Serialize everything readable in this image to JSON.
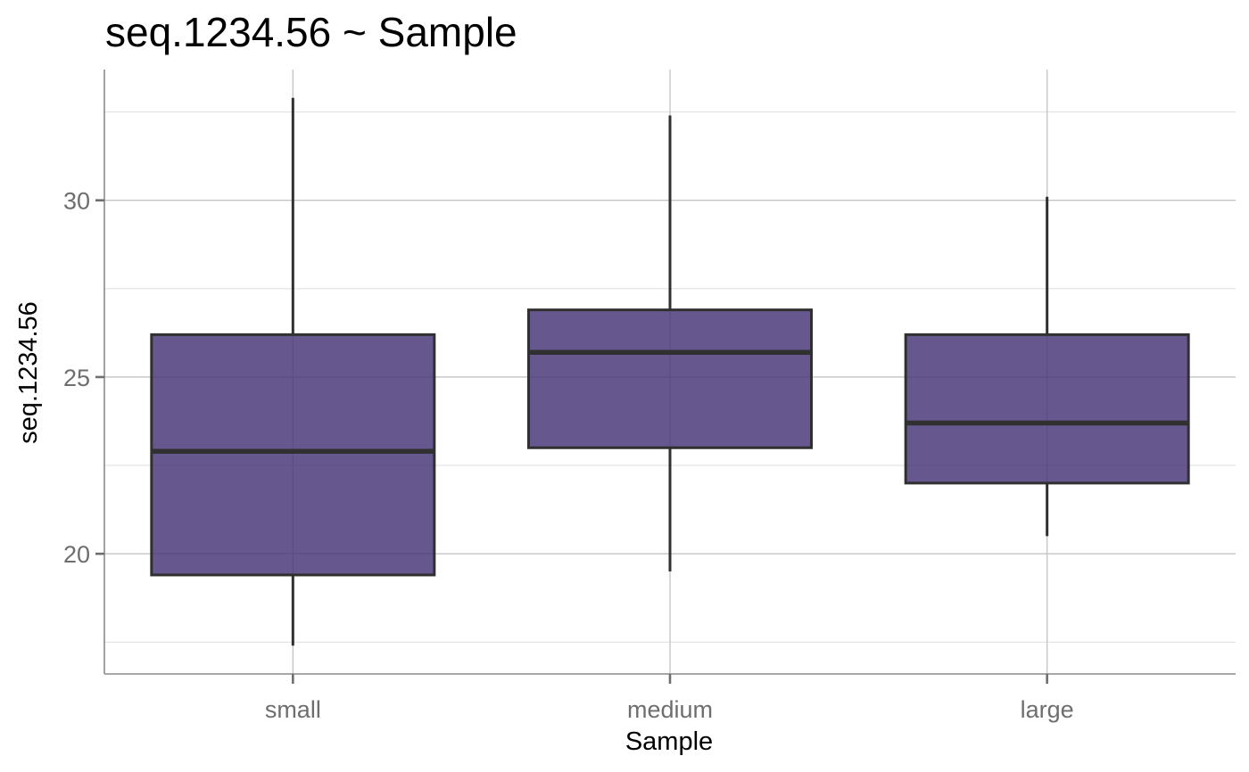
{
  "chart_data": {
    "type": "boxplot",
    "title": "seq.1234.56 ~ Sample",
    "xlabel": "Sample",
    "ylabel": "seq.1234.56",
    "categories": [
      "small",
      "medium",
      "large"
    ],
    "boxes": [
      {
        "category": "small",
        "whisker_low": 17.4,
        "q1": 19.4,
        "median": 22.9,
        "q3": 26.2,
        "whisker_high": 32.9
      },
      {
        "category": "medium",
        "whisker_low": 19.5,
        "q1": 23.0,
        "median": 25.7,
        "q3": 26.9,
        "whisker_high": 32.4
      },
      {
        "category": "large",
        "whisker_low": 20.5,
        "q1": 22.0,
        "median": 23.7,
        "q3": 26.2,
        "whisker_high": 30.1
      }
    ],
    "y_ticks": [
      20,
      25,
      30
    ],
    "ylim": [
      16.6,
      33.7
    ],
    "grid": true,
    "legend": "none",
    "colors": {
      "box_fill": "#4b3a7a",
      "box_outline": "#303030"
    }
  }
}
